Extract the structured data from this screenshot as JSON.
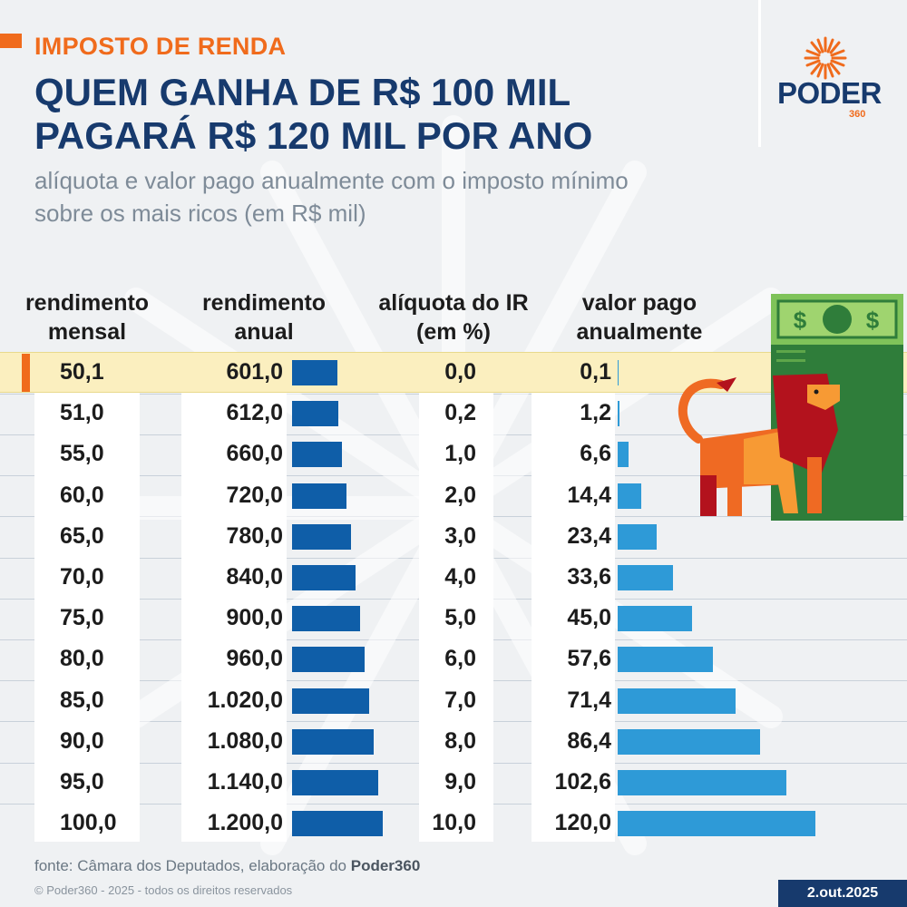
{
  "header": {
    "tag": "IMPOSTO DE RENDA",
    "title_line1": "QUEM GANHA DE R$ 100 MIL",
    "title_line2": "PAGARÁ R$ 120 MIL POR ANO",
    "subtitle_line1": "alíquota e valor pago anualmente com o imposto mínimo",
    "subtitle_line2": "sobre os mais ricos (em R$ mil)"
  },
  "logo": {
    "word": "PODER",
    "number": "360"
  },
  "colors": {
    "accent": "#f06b1c",
    "navy": "#173a6d",
    "bar_annual": "#0f5ea8",
    "bar_paid": "#2e9ad7",
    "highlight": "#fbefbf"
  },
  "chart_data": {
    "type": "table",
    "columns": [
      {
        "line1": "rendimento",
        "line2": "mensal"
      },
      {
        "line1": "rendimento",
        "line2": "anual"
      },
      {
        "line1": "alíquota do IR",
        "line2": "(em %)"
      },
      {
        "line1": "valor pago",
        "line2": "anualmente"
      }
    ],
    "rows": [
      {
        "mensal": "50,1",
        "anual": "601,0",
        "aliquota": "0,0",
        "pago": "0,1",
        "anual_value": 601.0,
        "pago_value": 0.1,
        "highlight": true
      },
      {
        "mensal": "51,0",
        "anual": "612,0",
        "aliquota": "0,2",
        "pago": "1,2",
        "anual_value": 612.0,
        "pago_value": 1.2
      },
      {
        "mensal": "55,0",
        "anual": "660,0",
        "aliquota": "1,0",
        "pago": "6,6",
        "anual_value": 660.0,
        "pago_value": 6.6
      },
      {
        "mensal": "60,0",
        "anual": "720,0",
        "aliquota": "2,0",
        "pago": "14,4",
        "anual_value": 720.0,
        "pago_value": 14.4
      },
      {
        "mensal": "65,0",
        "anual": "780,0",
        "aliquota": "3,0",
        "pago": "23,4",
        "anual_value": 780.0,
        "pago_value": 23.4
      },
      {
        "mensal": "70,0",
        "anual": "840,0",
        "aliquota": "4,0",
        "pago": "33,6",
        "anual_value": 840.0,
        "pago_value": 33.6
      },
      {
        "mensal": "75,0",
        "anual": "900,0",
        "aliquota": "5,0",
        "pago": "45,0",
        "anual_value": 900.0,
        "pago_value": 45.0
      },
      {
        "mensal": "80,0",
        "anual": "960,0",
        "aliquota": "6,0",
        "pago": "57,6",
        "anual_value": 960.0,
        "pago_value": 57.6
      },
      {
        "mensal": "85,0",
        "anual": "1.020,0",
        "aliquota": "7,0",
        "pago": "71,4",
        "anual_value": 1020.0,
        "pago_value": 71.4
      },
      {
        "mensal": "90,0",
        "anual": "1.080,0",
        "aliquota": "8,0",
        "pago": "86,4",
        "anual_value": 1080.0,
        "pago_value": 86.4
      },
      {
        "mensal": "95,0",
        "anual": "1.140,0",
        "aliquota": "9,0",
        "pago": "102,6",
        "anual_value": 1140.0,
        "pago_value": 102.6
      },
      {
        "mensal": "100,0",
        "anual": "1.200,0",
        "aliquota": "10,0",
        "pago": "120,0",
        "anual_value": 1200.0,
        "pago_value": 120.0
      }
    ]
  },
  "illustration": {
    "name": "lion-with-banknote",
    "banknote_symbol": "$"
  },
  "footer": {
    "source_prefix": "fonte: Câmara dos Deputados, elaboração do ",
    "source_bold": "Poder360",
    "copyright": "© Poder360 - 2025 - todos os direitos reservados",
    "date": "2.out.2025"
  }
}
